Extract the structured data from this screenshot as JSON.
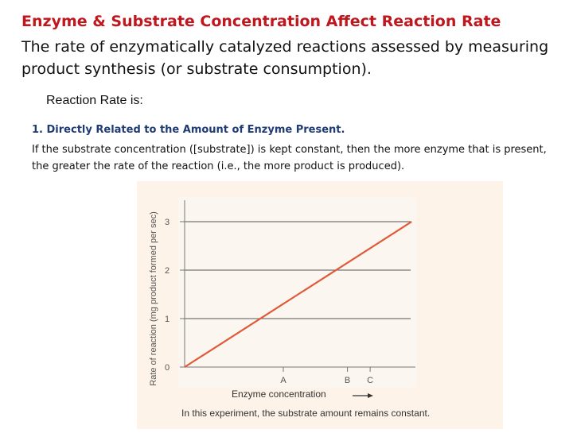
{
  "slide": {
    "title": "Enzyme & Substrate Concentration Affect Reaction Rate",
    "intro": "The rate of enzymatically catalyzed reactions assessed by measuring product synthesis (or substrate consumption).",
    "rate_heading": "Reaction Rate is:",
    "point_title": "1. Directly Related to the Amount of Enzyme Present.",
    "point_body": "If the substrate concentration ([substrate]) is kept constant, then the more enzyme that is present, the greater the rate of the reaction (i.e., the more product is produced)."
  },
  "chart_data": {
    "type": "line",
    "ylabel": "Rate of reaction (mg product formed per sec)",
    "xlabel": "Enzyme concentration",
    "caption": "In this experiment, the substrate amount remains constant.",
    "y_ticks": [
      "0",
      "1",
      "2",
      "3"
    ],
    "x_ticks": [
      "A",
      "B",
      "C"
    ],
    "ylim": [
      0,
      3.2
    ],
    "grid": true,
    "series": [
      {
        "x": [
          0,
          2.3
        ],
        "y": [
          0,
          3
        ]
      }
    ],
    "colors": {
      "line": "#e05a3a",
      "background": "#fdf3e8",
      "axis": "#777777",
      "gridline": "#555555"
    }
  }
}
